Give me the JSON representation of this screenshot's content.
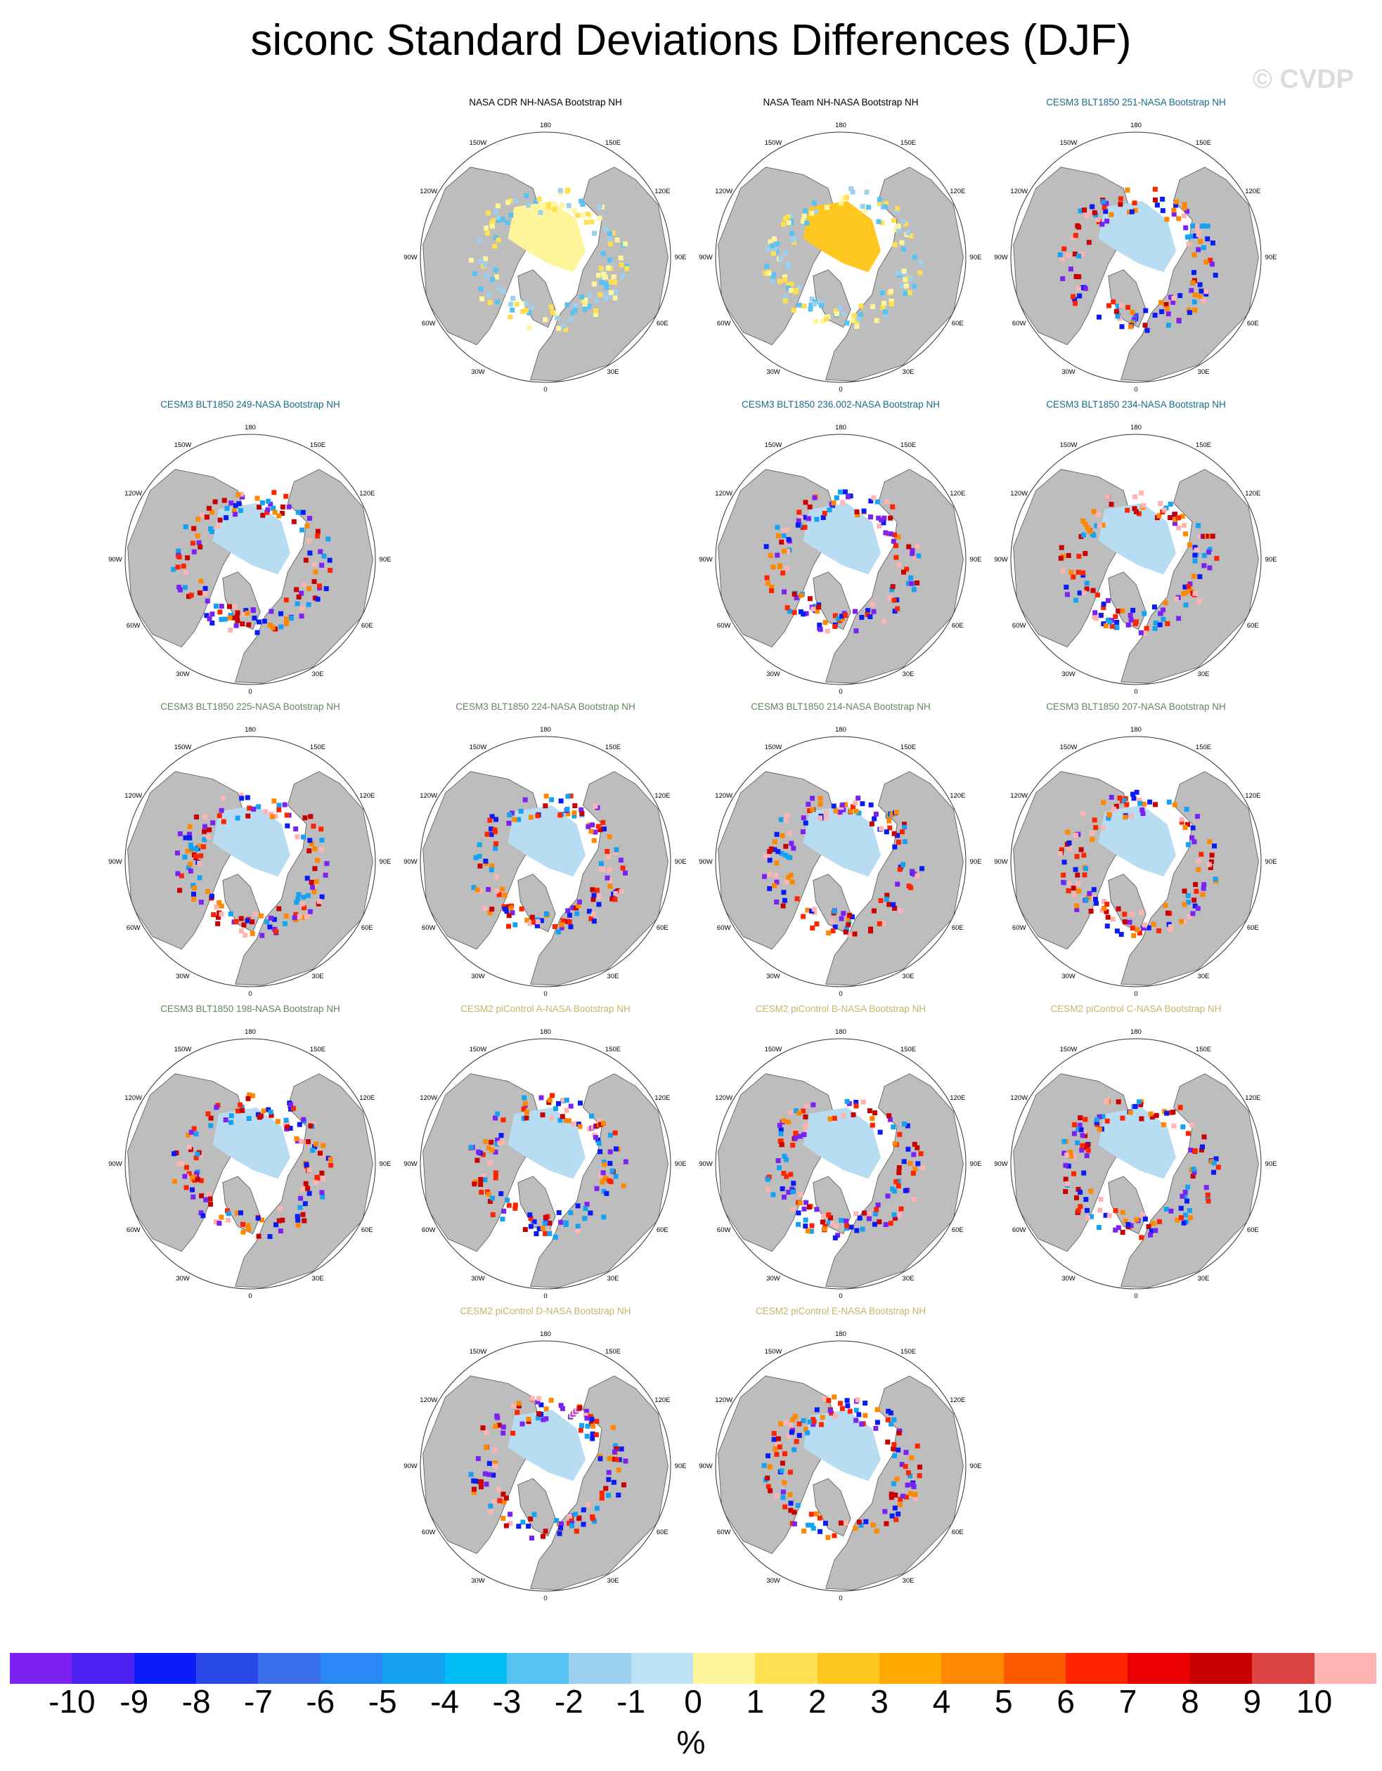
{
  "title": "siconc Standard Deviations Differences (DJF)",
  "watermark": "© CVDP",
  "colors": {
    "land": "#bdbdbd",
    "ocean": "#ffffff",
    "ice_light": "#b8ddf2",
    "title_obs": "#000000",
    "title_cesm3_a": "#1a6a8a",
    "title_cesm3_b": "#5e8a5e",
    "title_cesm2": "#c8b46a"
  },
  "chart_data": {
    "type": "heatmap",
    "projection": "north-polar-stereographic",
    "longitude_labels": [
      "180",
      "150E",
      "120E",
      "90E",
      "60E",
      "30E",
      "0",
      "30W",
      "60W",
      "90W",
      "120W",
      "150W"
    ],
    "panels": [
      {
        "title": "NASA CDR NH-NASA Bootstrap NH",
        "group": "obs"
      },
      {
        "title": "NASA Team NH-NASA Bootstrap NH",
        "group": "obs"
      },
      {
        "title": "CESM3 BLT1850 251-NASA Bootstrap NH",
        "group": "cesm3_a"
      },
      {
        "title": "CESM3 BLT1850 249-NASA Bootstrap NH",
        "group": "cesm3_a"
      },
      {
        "title": "CESM3 BLT1850 236.002-NASA Bootstrap NH",
        "group": "cesm3_a"
      },
      {
        "title": "CESM3 BLT1850 234-NASA Bootstrap NH",
        "group": "cesm3_a"
      },
      {
        "title": "CESM3 BLT1850 225-NASA Bootstrap NH",
        "group": "cesm3_b"
      },
      {
        "title": "CESM3 BLT1850 224-NASA Bootstrap NH",
        "group": "cesm3_b"
      },
      {
        "title": "CESM3 BLT1850 214-NASA Bootstrap NH",
        "group": "cesm3_b"
      },
      {
        "title": "CESM3 BLT1850 207-NASA Bootstrap NH",
        "group": "cesm3_b"
      },
      {
        "title": "CESM3 BLT1850 198-NASA Bootstrap NH",
        "group": "cesm3_b"
      },
      {
        "title": "CESM2 piControl A-NASA Bootstrap NH",
        "group": "cesm2"
      },
      {
        "title": "CESM2 piControl B-NASA Bootstrap NH",
        "group": "cesm2"
      },
      {
        "title": "CESM2 piControl C-NASA Bootstrap NH",
        "group": "cesm2"
      },
      {
        "title": "CESM2 piControl D-NASA Bootstrap NH",
        "group": "cesm2"
      },
      {
        "title": "CESM2 piControl E-NASA Bootstrap NH",
        "group": "cesm2"
      }
    ],
    "colorbar": {
      "unit": "%",
      "labels": [
        "-10",
        "-9",
        "-8",
        "-7",
        "-6",
        "-5",
        "-4",
        "-3",
        "-2",
        "-1",
        "0",
        "1",
        "2",
        "3",
        "4",
        "5",
        "6",
        "7",
        "8",
        "9",
        "10"
      ],
      "colors": [
        "#7b22f2",
        "#4a1ff0",
        "#0a1cf5",
        "#2a48e8",
        "#3a6ee8",
        "#2a88f4",
        "#16a2f2",
        "#00bcf6",
        "#58c2f2",
        "#9cd0ee",
        "#bce2f4",
        "#fff59a",
        "#ffe050",
        "#ffc820",
        "#ffa800",
        "#ff8800",
        "#ff5a00",
        "#ff2400",
        "#ea0000",
        "#c80000",
        "#dc4444",
        "#ffb4b4"
      ]
    }
  }
}
